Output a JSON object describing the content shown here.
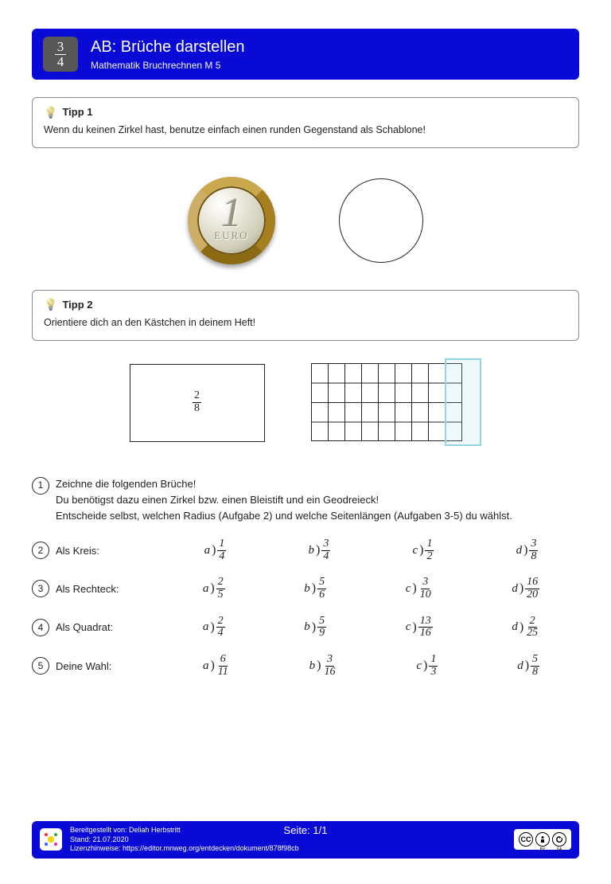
{
  "header": {
    "icon_fraction": {
      "num": "3",
      "den": "4"
    },
    "title": "AB: Brüche darstellen",
    "subtitle": "Mathematik Bruchrechnen M 5",
    "bg_color": "#0a0ad6",
    "icon_bg": "#575757"
  },
  "tips": [
    {
      "title": "Tipp 1",
      "text": "Wenn du keinen Zirkel hast, benutze einfach einen runden Gegenstand als Schablone!"
    },
    {
      "title": "Tipp 2",
      "text": "Orientiere dich an den Kästchen in deinem Heft!"
    }
  ],
  "coin": {
    "big": "1",
    "label": "EURO"
  },
  "rect_fraction": {
    "num": "2",
    "den": "8"
  },
  "grid": {
    "cols": 9,
    "rows": 4,
    "highlight_cols": 2,
    "highlight_color": "#8fd6e2"
  },
  "task_intro": {
    "num": "1",
    "line1": "Zeichne die folgenden Brüche!",
    "line2": "Du benötigst dazu einen Zirkel bzw. einen Bleistift und ein Geodreieck!",
    "line3": "Entscheide selbst, welchen Radius (Aufgabe 2) und welche Seitenlängen (Aufgaben 3-5) du wählst."
  },
  "exercises": [
    {
      "num": "2",
      "label": "Als Kreis:",
      "items": [
        {
          "l": "a",
          "n": "1",
          "d": "4"
        },
        {
          "l": "b",
          "n": "3",
          "d": "4"
        },
        {
          "l": "c",
          "n": "1",
          "d": "2"
        },
        {
          "l": "d",
          "n": "3",
          "d": "8"
        }
      ]
    },
    {
      "num": "3",
      "label": "Als Rechteck:",
      "items": [
        {
          "l": "a",
          "n": "2",
          "d": "5"
        },
        {
          "l": "b",
          "n": "5",
          "d": "6"
        },
        {
          "l": "c",
          "n": "3",
          "d": "10"
        },
        {
          "l": "d",
          "n": "16",
          "d": "20"
        }
      ]
    },
    {
      "num": "4",
      "label": "Als Quadrat:",
      "items": [
        {
          "l": "a",
          "n": "2",
          "d": "4"
        },
        {
          "l": "b",
          "n": "5",
          "d": "9"
        },
        {
          "l": "c",
          "n": "13",
          "d": "16"
        },
        {
          "l": "d",
          "n": "2",
          "d": "25"
        }
      ]
    },
    {
      "num": "5",
      "label": "Deine Wahl:",
      "items": [
        {
          "l": "a",
          "n": "6",
          "d": "11"
        },
        {
          "l": "b",
          "n": "3",
          "d": "16"
        },
        {
          "l": "c",
          "n": "1",
          "d": "3"
        },
        {
          "l": "d",
          "n": "5",
          "d": "8"
        }
      ]
    }
  ],
  "footer": {
    "provided_by_label": "Bereitgestellt von: ",
    "provided_by": "Deliah Herbstritt",
    "date_label": "Stand: ",
    "date": "21.07.2020",
    "license_label": "Lizenzhinweise: ",
    "license_url": "https://editor.mnweg.org/entdecken/dokument/878f98cb",
    "page_label": "Seite: ",
    "page": "1/1",
    "cc": {
      "a": "CC",
      "b": "BY",
      "c": "SA"
    }
  },
  "watermark": ""
}
